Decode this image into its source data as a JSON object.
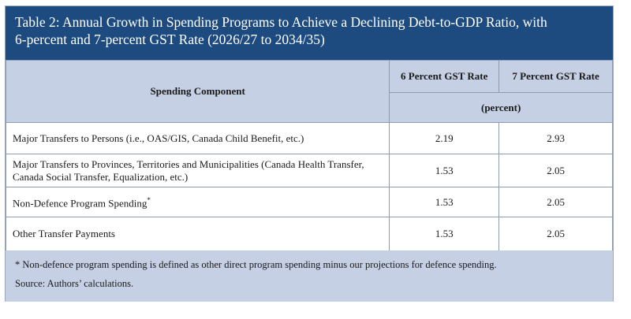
{
  "title": {
    "line1": "Table 2: Annual Growth in Spending Programs to Achieve a Declining Debt-to-GDP Ratio, with",
    "line2": "6-percent and 7-percent GST Rate (2026/27 to 2034/35)"
  },
  "header": {
    "component_label": "Spending Component",
    "col1_label": "6 Percent GST Rate",
    "col2_label": "7 Percent GST Rate",
    "unit_label": "(percent)"
  },
  "rows": [
    {
      "component": "Major Transfers to Persons (i.e., OAS/GIS, Canada Child Benefit, etc.)",
      "gst6": "2.19",
      "gst7": "2.93"
    },
    {
      "component_line1": "Major Transfers to Provinces, Territories and Municipalities (Canada Health Transfer,",
      "component_line2": "Canada Social Transfer, Equalization, etc.)",
      "gst6": "1.53",
      "gst7": "2.05"
    },
    {
      "component": "Non-Defence Program Spending",
      "footnote_mark": "*",
      "gst6": "1.53",
      "gst7": "2.05"
    },
    {
      "component": "Other Transfer Payments",
      "gst6": "1.53",
      "gst7": "2.05"
    }
  ],
  "notes": {
    "footnote": "* Non-defence program spending is defined as other direct program spending minus our projections for defence spending.",
    "source": "Source: Authors’ calculations."
  },
  "colors": {
    "title_bg": "#1d4b7f",
    "header_bg": "#c5d0e4",
    "border": "#8d9ab0"
  }
}
